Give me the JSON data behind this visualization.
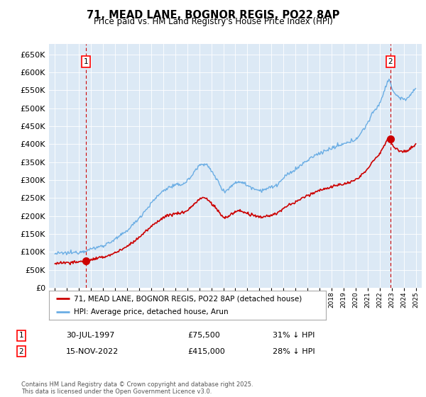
{
  "title1": "71, MEAD LANE, BOGNOR REGIS, PO22 8AP",
  "title2": "Price paid vs. HM Land Registry's House Price Index (HPI)",
  "bg_color": "#dce9f5",
  "hpi_color": "#6aade4",
  "price_color": "#cc0000",
  "marker1_date": 1997.58,
  "marker1_price": 75500,
  "marker2_date": 2022.88,
  "marker2_price": 415000,
  "legend1": "71, MEAD LANE, BOGNOR REGIS, PO22 8AP (detached house)",
  "legend2": "HPI: Average price, detached house, Arun",
  "note1_date": "30-JUL-1997",
  "note1_price": "£75,500",
  "note1_hpi": "31% ↓ HPI",
  "note2_date": "15-NOV-2022",
  "note2_price": "£415,000",
  "note2_hpi": "28% ↓ HPI",
  "footer": "Contains HM Land Registry data © Crown copyright and database right 2025.\nThis data is licensed under the Open Government Licence v3.0.",
  "ylim_min": 0,
  "ylim_max": 680000,
  "xlim_min": 1994.5,
  "xlim_max": 2025.5
}
